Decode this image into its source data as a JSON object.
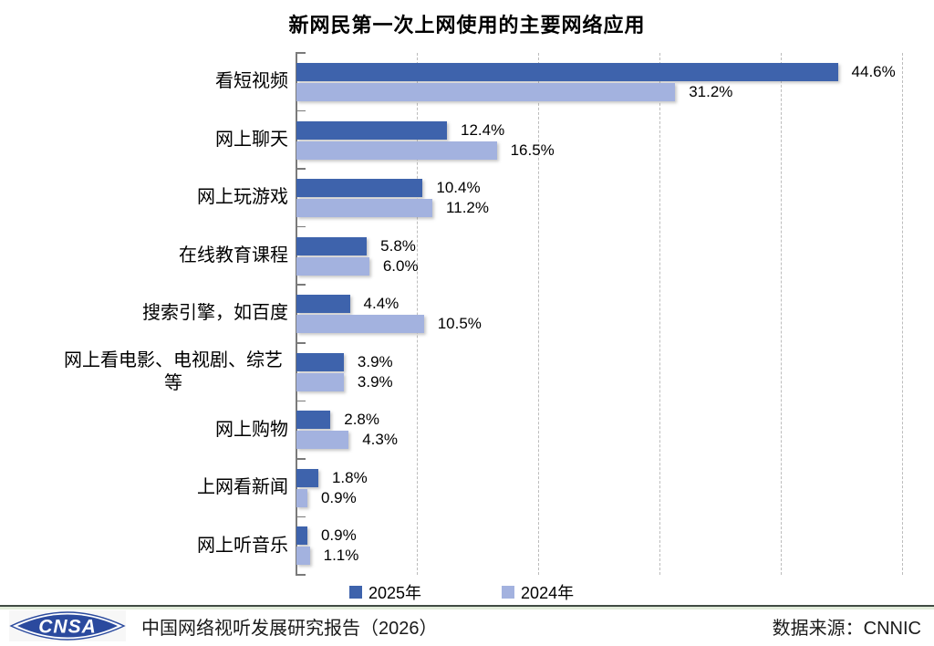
{
  "title": "新网民第一次上网使用的主要网络应用",
  "chart_data": {
    "type": "bar",
    "orientation": "horizontal",
    "title": "新网民第一次上网使用的主要网络应用",
    "categories": [
      "看短视频",
      "网上聊天",
      "网上玩游戏",
      "在线教育课程",
      "搜索引擎，如百度",
      "网上看电影、电视剧、综艺等",
      "网上购物",
      "上网看新闻",
      "网上听音乐"
    ],
    "series": [
      {
        "name": "2025年",
        "color": "#3E63AC",
        "values": [
          44.6,
          12.4,
          10.4,
          5.8,
          4.4,
          3.9,
          2.8,
          1.8,
          0.9
        ]
      },
      {
        "name": "2024年",
        "color": "#A3B2DF",
        "values": [
          31.2,
          16.5,
          11.2,
          6.0,
          10.5,
          3.9,
          4.3,
          0.9,
          1.1
        ]
      }
    ],
    "value_suffix": "%",
    "xlim": [
      0,
      52.6
    ],
    "gridlines": [
      10,
      20,
      30,
      40,
      50
    ],
    "grid_style": "vertical dashed",
    "legend_position": "bottom",
    "data_labels": true
  },
  "footer": {
    "logo_text": "CNSA",
    "report_title": "中国网络视听发展研究报告（2026）",
    "source": "数据来源：CNNIC"
  },
  "colors": {
    "series_2025": "#3E63AC",
    "series_2024": "#A3B2DF",
    "gridline": "#bcbcbc",
    "axis": "#7a7a7a",
    "logo_blue": "#2B4A9E",
    "separator_dark": "#414b44",
    "separator_light": "#e2ecda"
  }
}
